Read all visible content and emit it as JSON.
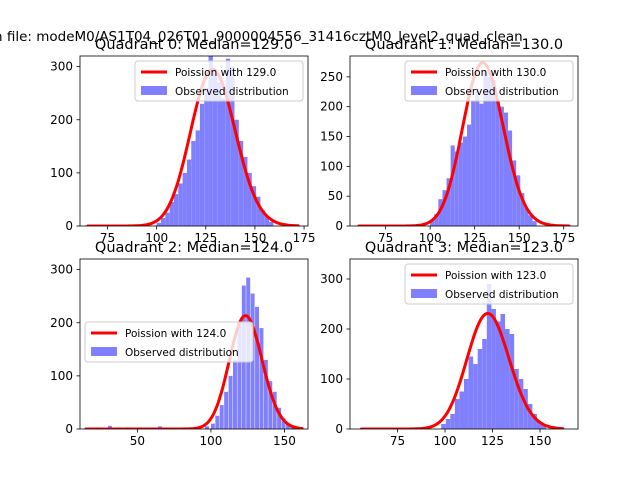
{
  "figure": {
    "suptitle": "n file: modeM0/AS1T04_026T01_9000004556_31416cztM0_level2_quad_clean"
  },
  "colors": {
    "poisson_line": "#ff0000",
    "histogram": "#8080ff",
    "axes": "#000000",
    "background": "#ffffff"
  },
  "chart_data": [
    {
      "type": "bar",
      "title": "Quadrant 0: Median=129.0",
      "median": 129.0,
      "legend_position": "upper right",
      "xlim": [
        61,
        177
      ],
      "ylim": [
        0,
        320
      ],
      "xticks": [
        75,
        100,
        125,
        150,
        175
      ],
      "yticks": [
        0,
        100,
        200,
        300
      ],
      "series": [
        {
          "name": "Poission with 129.0",
          "kind": "line",
          "mu": 129.0,
          "x_range": [
            65,
            172
          ]
        },
        {
          "name": "Observed distribution",
          "kind": "histogram",
          "bin_width": 2.2,
          "bins": [
            [
              100,
              6
            ],
            [
              102.2,
              15
            ],
            [
              104.4,
              25
            ],
            [
              106.6,
              45
            ],
            [
              108.8,
              60
            ],
            [
              111,
              80
            ],
            [
              113.2,
              100
            ],
            [
              115.4,
              125
            ],
            [
              117.6,
              160
            ],
            [
              119.8,
              180
            ],
            [
              122,
              230
            ],
            [
              124.2,
              260
            ],
            [
              126.4,
              330
            ],
            [
              128.6,
              295
            ],
            [
              130.8,
              270
            ],
            [
              133,
              240
            ],
            [
              135.2,
              315
            ],
            [
              137.4,
              300
            ],
            [
              139.6,
              200
            ],
            [
              141.8,
              160
            ],
            [
              144,
              130
            ],
            [
              146.2,
              100
            ],
            [
              148.4,
              75
            ],
            [
              150.6,
              55
            ],
            [
              152.8,
              30
            ],
            [
              155,
              18
            ],
            [
              157.2,
              8
            ]
          ]
        }
      ]
    },
    {
      "type": "bar",
      "title": "Quadrant 1: Median=130.0",
      "median": 130.0,
      "legend_position": "upper right",
      "xlim": [
        55,
        183
      ],
      "ylim": [
        0,
        285
      ],
      "xticks": [
        75,
        100,
        125,
        150,
        175
      ],
      "yticks": [
        0,
        50,
        100,
        150,
        200,
        250
      ],
      "series": [
        {
          "name": "Poission with 130.0",
          "kind": "line",
          "mu": 130.0,
          "x_range": [
            60,
            178
          ]
        },
        {
          "name": "Observed distribution",
          "kind": "histogram",
          "bin_width": 2.3,
          "bins": [
            [
              100,
              10
            ],
            [
              102.3,
              20
            ],
            [
              104.6,
              45
            ],
            [
              106.9,
              60
            ],
            [
              109.2,
              80
            ],
            [
              111.5,
              135
            ],
            [
              113.8,
              125
            ],
            [
              116.1,
              140
            ],
            [
              118.4,
              150
            ],
            [
              120.7,
              170
            ],
            [
              123,
              210
            ],
            [
              125.3,
              230
            ],
            [
              127.6,
              205
            ],
            [
              129.9,
              260
            ],
            [
              132.2,
              250
            ],
            [
              134.5,
              245
            ],
            [
              136.8,
              210
            ],
            [
              139.1,
              200
            ],
            [
              141.4,
              190
            ],
            [
              143.7,
              160
            ],
            [
              146,
              110
            ],
            [
              148.3,
              85
            ],
            [
              150.6,
              55
            ],
            [
              152.9,
              30
            ],
            [
              155.2,
              18
            ],
            [
              157.5,
              8
            ]
          ]
        }
      ]
    },
    {
      "type": "bar",
      "title": "Quadrant 2: Median=124.0",
      "median": 124.0,
      "legend_position": "center left",
      "xlim": [
        11,
        166
      ],
      "ylim": [
        0,
        320
      ],
      "xticks": [
        50,
        100,
        150
      ],
      "yticks": [
        0,
        100,
        200,
        300
      ],
      "series": [
        {
          "name": "Poission with 124.0",
          "kind": "line",
          "mu": 124.0,
          "x_range": [
            15,
            162
          ]
        },
        {
          "name": "Observed distribution",
          "kind": "histogram",
          "bin_width": 2.7,
          "bins": [
            [
              22,
              3
            ],
            [
              30,
              6
            ],
            [
              36,
              3
            ],
            [
              42,
              3
            ],
            [
              50,
              3
            ],
            [
              64,
              5
            ],
            [
              80,
              3
            ],
            [
              96,
              5
            ],
            [
              100,
              10
            ],
            [
              103,
              25
            ],
            [
              106,
              45
            ],
            [
              109,
              70
            ],
            [
              112,
              100
            ],
            [
              115,
              130
            ],
            [
              118,
              200
            ],
            [
              121,
              270
            ],
            [
              124,
              285
            ],
            [
              127,
              255
            ],
            [
              130,
              230
            ],
            [
              133,
              190
            ],
            [
              136,
              130
            ],
            [
              139,
              90
            ],
            [
              142,
              70
            ],
            [
              145,
              40
            ],
            [
              148,
              20
            ],
            [
              151,
              10
            ],
            [
              154,
              5
            ]
          ]
        }
      ]
    },
    {
      "type": "bar",
      "title": "Quadrant 3: Median=123.0",
      "median": 123.0,
      "legend_position": "upper right",
      "xlim": [
        50,
        170
      ],
      "ylim": [
        0,
        340
      ],
      "xticks": [
        75,
        100,
        125,
        150
      ],
      "yticks": [
        0,
        100,
        200,
        300
      ],
      "series": [
        {
          "name": "Poission with 123.0",
          "kind": "line",
          "mu": 123.0,
          "x_range": [
            56,
            162
          ]
        },
        {
          "name": "Observed distribution",
          "kind": "histogram",
          "bin_width": 2.4,
          "bins": [
            [
              98,
              10
            ],
            [
              100.4,
              20
            ],
            [
              102.8,
              30
            ],
            [
              105.2,
              60
            ],
            [
              107.6,
              75
            ],
            [
              110,
              100
            ],
            [
              112.4,
              145
            ],
            [
              114.8,
              130
            ],
            [
              117.2,
              160
            ],
            [
              119.6,
              180
            ],
            [
              122,
              290
            ],
            [
              124.4,
              240
            ],
            [
              126.8,
              215
            ],
            [
              129.2,
              230
            ],
            [
              131.6,
              200
            ],
            [
              134,
              190
            ],
            [
              136.4,
              120
            ],
            [
              138.8,
              100
            ],
            [
              141.2,
              80
            ],
            [
              143.6,
              50
            ],
            [
              146,
              30
            ],
            [
              148.4,
              15
            ],
            [
              150.8,
              8
            ]
          ]
        }
      ]
    }
  ]
}
